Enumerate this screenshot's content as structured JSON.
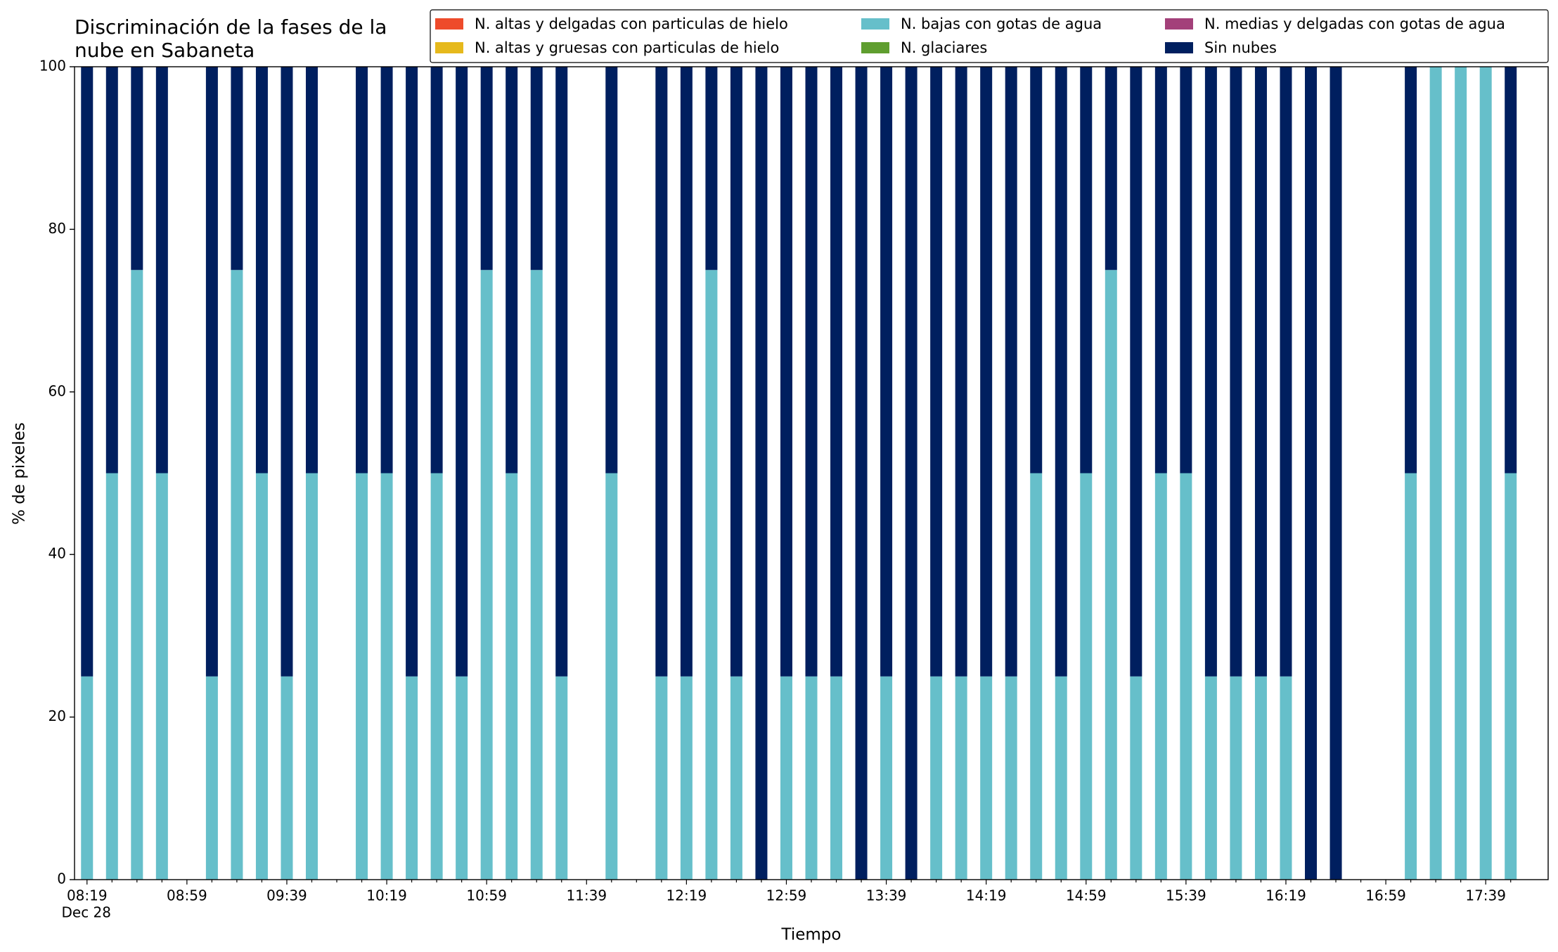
{
  "chart_data": {
    "type": "stacked_bar",
    "title": "Discriminación de la fases de la nube en Sabaneta",
    "xlabel": "Tiempo",
    "ylabel": "% de pixeles",
    "x_date_label": "Dec 28",
    "categories": [
      "08:19",
      null,
      null,
      null,
      "08:59",
      null,
      null,
      null,
      "09:39",
      null,
      null,
      null,
      "10:19",
      null,
      null,
      null,
      "10:59",
      null,
      null,
      null,
      "11:39",
      null,
      null,
      null,
      "12:19",
      null,
      null,
      null,
      "12:59",
      null,
      null,
      null,
      "13:39",
      null,
      null,
      null,
      "14:19",
      null,
      null,
      null,
      "14:59",
      null,
      null,
      null,
      "15:39",
      null,
      null,
      null,
      "16:19",
      null,
      null,
      null,
      "16:59",
      null,
      null,
      null,
      "17:39",
      null
    ],
    "series": [
      {
        "name": "N. altas y delgadas con particulas de hielo",
        "color": "#ee4b2b",
        "values": [
          0,
          0,
          0,
          0,
          null,
          0,
          0,
          0,
          0,
          0,
          null,
          0,
          0,
          0,
          0,
          0,
          0,
          0,
          0,
          0,
          null,
          0,
          null,
          0,
          0,
          0,
          0,
          0,
          0,
          0,
          0,
          0,
          0,
          0,
          0,
          0,
          0,
          0,
          0,
          0,
          0,
          0,
          0,
          0,
          0,
          0,
          0,
          0,
          0,
          0,
          0,
          null,
          null,
          0,
          0,
          0,
          0,
          0
        ]
      },
      {
        "name": "N. altas y gruesas con particulas de hielo",
        "color": "#e6b91c",
        "values": [
          0,
          0,
          0,
          0,
          null,
          0,
          0,
          0,
          0,
          0,
          null,
          0,
          0,
          0,
          0,
          0,
          0,
          0,
          0,
          0,
          null,
          0,
          null,
          0,
          0,
          0,
          0,
          0,
          0,
          0,
          0,
          0,
          0,
          0,
          0,
          0,
          0,
          0,
          0,
          0,
          0,
          0,
          0,
          0,
          0,
          0,
          0,
          0,
          0,
          0,
          0,
          null,
          null,
          0,
          0,
          0,
          0,
          0
        ]
      },
      {
        "name": "N. bajas con gotas de agua",
        "color": "#66bfca",
        "values": [
          25,
          50,
          75,
          50,
          null,
          25,
          75,
          50,
          25,
          50,
          null,
          50,
          50,
          25,
          50,
          25,
          75,
          50,
          75,
          25,
          null,
          50,
          null,
          25,
          25,
          75,
          25,
          0,
          25,
          25,
          25,
          0,
          25,
          0,
          25,
          25,
          25,
          25,
          50,
          25,
          50,
          75,
          25,
          50,
          50,
          25,
          25,
          25,
          25,
          0,
          0,
          null,
          null,
          50,
          100,
          100,
          100,
          50
        ]
      },
      {
        "name": "N. glaciares",
        "color": "#5f9e2f",
        "values": [
          0,
          0,
          0,
          0,
          null,
          0,
          0,
          0,
          0,
          0,
          null,
          0,
          0,
          0,
          0,
          0,
          0,
          0,
          0,
          0,
          null,
          0,
          null,
          0,
          0,
          0,
          0,
          0,
          0,
          0,
          0,
          0,
          0,
          0,
          0,
          0,
          0,
          0,
          0,
          0,
          0,
          0,
          0,
          0,
          0,
          0,
          0,
          0,
          0,
          0,
          0,
          null,
          null,
          0,
          0,
          0,
          0,
          0
        ]
      },
      {
        "name": "N. medias y delgadas con gotas de agua",
        "color": "#a3407a",
        "values": [
          0,
          0,
          0,
          0,
          null,
          0,
          0,
          0,
          0,
          0,
          null,
          0,
          0,
          0,
          0,
          0,
          0,
          0,
          0,
          0,
          null,
          0,
          null,
          0,
          0,
          0,
          0,
          0,
          0,
          0,
          0,
          0,
          0,
          0,
          0,
          0,
          0,
          0,
          0,
          0,
          0,
          0,
          0,
          0,
          0,
          0,
          0,
          0,
          0,
          0,
          0,
          null,
          null,
          0,
          0,
          0,
          0,
          0
        ]
      },
      {
        "name": "Sin nubes",
        "color": "#001f5f",
        "values": [
          75,
          50,
          25,
          50,
          null,
          75,
          25,
          50,
          75,
          50,
          null,
          50,
          50,
          75,
          50,
          75,
          25,
          50,
          25,
          75,
          null,
          50,
          null,
          75,
          75,
          25,
          75,
          100,
          75,
          75,
          75,
          100,
          75,
          100,
          75,
          75,
          75,
          75,
          50,
          75,
          50,
          25,
          75,
          50,
          50,
          75,
          75,
          75,
          75,
          100,
          100,
          null,
          null,
          50,
          0,
          0,
          0,
          50
        ]
      }
    ],
    "ylim": [
      0,
      100
    ],
    "yticks": [
      0,
      20,
      40,
      60,
      80,
      100
    ],
    "grid": false
  }
}
